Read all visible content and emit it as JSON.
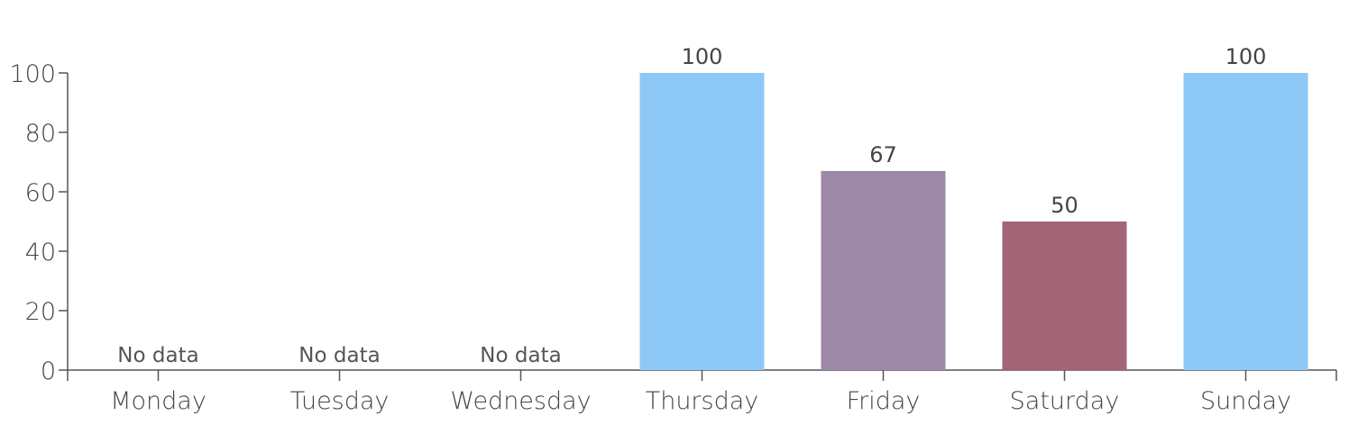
{
  "chart_data": {
    "type": "bar",
    "categories": [
      "Monday",
      "Tuesday",
      "Wednesday",
      "Thursday",
      "Friday",
      "Saturday",
      "Sunday"
    ],
    "values": [
      null,
      null,
      null,
      100,
      67,
      50,
      100
    ],
    "data_labels": [
      "No data",
      "No data",
      "No data",
      "100",
      "67",
      "50",
      "100"
    ],
    "bar_colors": [
      "#8ec8f7",
      "#8ec8f7",
      "#8ec8f7",
      "#8ec8f7",
      "#9d88a6",
      "#a46478",
      "#8ec8f7"
    ],
    "y_ticks": [
      0,
      20,
      40,
      60,
      80,
      100
    ],
    "ylim": [
      0,
      100
    ],
    "title": "",
    "xlabel": "",
    "ylabel": "",
    "grid": false,
    "legend": "none"
  }
}
